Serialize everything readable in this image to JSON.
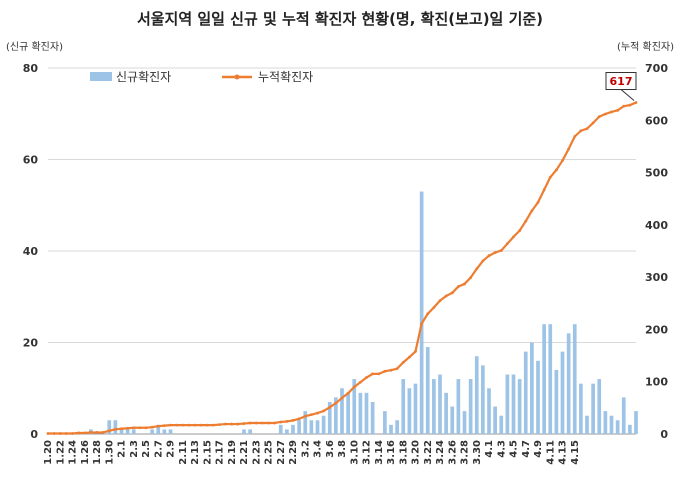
{
  "chart_data": {
    "type": "bar+line",
    "title": "서울지역 일일 신규 및 누적 확진자 현황(명, 확진(보고)일 기준)",
    "y_left_label": "(신규 확진자)",
    "y_right_label": "(누적 확진자)",
    "y_left_range": [
      0,
      80
    ],
    "y_left_ticks": [
      "0",
      "20",
      "40",
      "60",
      "80"
    ],
    "y_right_range": [
      0,
      700
    ],
    "y_right_ticks": [
      "0",
      "100",
      "200",
      "300",
      "400",
      "500",
      "600",
      "700"
    ],
    "x_start": "1.20",
    "x_tick_labels": [
      "1.20",
      "1.22",
      "1.24",
      "1.26",
      "1.28",
      "1.30",
      "2.1",
      "2.3",
      "2.5",
      "2.7",
      "2.9",
      "2.11",
      "2.13",
      "2.15",
      "2.17",
      "2.19",
      "2.21",
      "2.23",
      "2.25",
      "2.27",
      "2.29",
      "3.2",
      "3.4",
      "3.6",
      "3.8",
      "3.10",
      "3.12",
      "3.14",
      "3.16",
      "3.18",
      "3.20",
      "3.22",
      "3.24",
      "3.26",
      "3.28",
      "3.30",
      "4.1",
      "4.3",
      "4.5",
      "4.7",
      "4.9",
      "4.11",
      "4.13",
      "4.15"
    ],
    "legend": {
      "position": "top-left"
    },
    "series": [
      {
        "name": "신규확진자",
        "type": "bar",
        "axis": "left",
        "color": "#9dc3e6",
        "values": [
          0,
          0,
          0,
          0,
          0,
          0,
          0,
          1,
          0,
          0,
          3,
          3,
          1,
          1,
          1,
          0,
          0,
          1,
          2,
          1,
          1,
          0,
          0,
          0,
          0,
          0,
          0,
          0,
          0,
          0,
          0,
          0,
          1,
          1,
          0,
          0,
          0,
          0,
          2,
          1,
          2,
          3,
          5,
          3,
          3,
          4,
          7,
          8,
          10,
          9,
          12,
          9,
          9,
          7,
          0,
          5,
          2,
          3,
          12,
          10,
          11,
          53,
          19,
          12,
          13,
          9,
          6,
          12,
          5,
          12,
          17,
          15,
          10,
          6,
          4,
          13,
          13,
          12,
          18,
          20,
          16,
          24,
          24,
          14,
          18,
          22,
          24,
          11,
          4,
          11,
          12,
          5,
          4,
          3,
          8,
          2,
          5
        ]
      },
      {
        "name": "누적확진자",
        "type": "line",
        "axis": "right",
        "color": "#ed7d31",
        "values": [
          1,
          1,
          1,
          1,
          1,
          2,
          2,
          3,
          3,
          3,
          6,
          9,
          10,
          11,
          12,
          12,
          12,
          13,
          15,
          16,
          17,
          17,
          17,
          17,
          17,
          17,
          17,
          17,
          18,
          19,
          19,
          19,
          20,
          21,
          21,
          21,
          21,
          21,
          23,
          24,
          26,
          29,
          34,
          37,
          40,
          44,
          51,
          59,
          69,
          78,
          90,
          99,
          108,
          115,
          115,
          120,
          122,
          125,
          137,
          147,
          158,
          211,
          230,
          242,
          255,
          264,
          270,
          282,
          287,
          299,
          316,
          331,
          341,
          347,
          351,
          364,
          377,
          389,
          407,
          427,
          443,
          467,
          491,
          505,
          523,
          545,
          569,
          580,
          584,
          595,
          607,
          612,
          616,
          619,
          627,
          629,
          634
        ],
        "callout": "617"
      }
    ]
  }
}
